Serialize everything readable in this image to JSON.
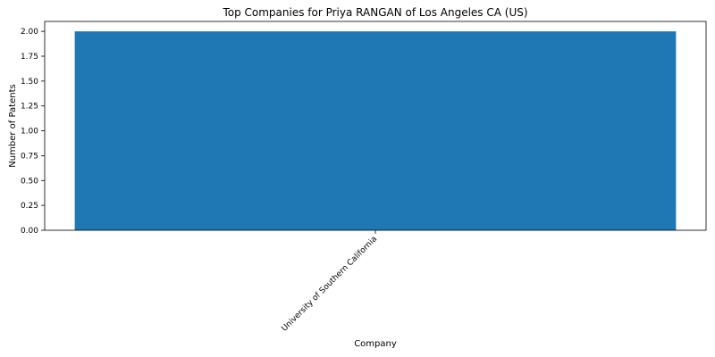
{
  "chart_data": {
    "type": "bar",
    "title": "Top Companies for Priya RANGAN of Los Angeles CA (US)",
    "xlabel": "Company",
    "ylabel": "Number of Patents",
    "categories": [
      "University of Southern California"
    ],
    "values": [
      2
    ],
    "ylim": [
      0,
      2.1
    ],
    "yticks": [
      "0.00",
      "0.25",
      "0.50",
      "0.75",
      "1.00",
      "1.25",
      "1.50",
      "1.75",
      "2.00"
    ],
    "bar_color": "#1f77b4",
    "grid": false,
    "legend": "none"
  }
}
